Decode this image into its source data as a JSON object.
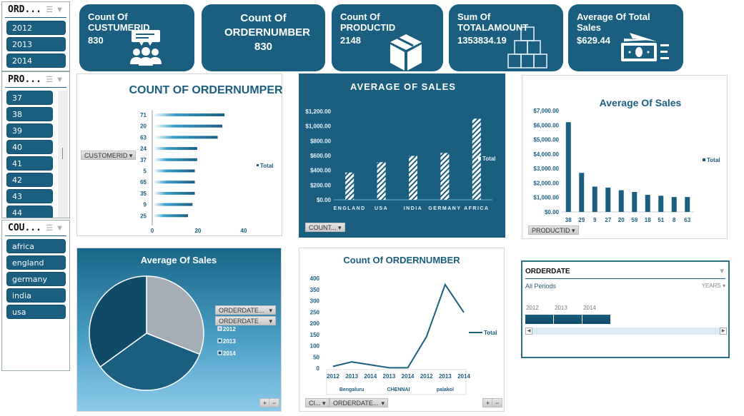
{
  "slicers": {
    "orderdate": {
      "title": "ORD...",
      "items": [
        "2012",
        "2013",
        "2014"
      ]
    },
    "productid": {
      "title": "PRO...",
      "items": [
        "37",
        "38",
        "39",
        "40",
        "41",
        "42",
        "43",
        "44"
      ]
    },
    "country": {
      "title": "COU...",
      "items": [
        "africa",
        "england",
        "germany",
        "india",
        "usa"
      ]
    }
  },
  "cards": [
    {
      "label": "Count Of CUSTUMERID",
      "value": "830",
      "icon": "customers-icon"
    },
    {
      "label": "Count Of ORDERNUMBER",
      "value": "830"
    },
    {
      "label": "Count Of PRODUCTID",
      "value": "2148",
      "icon": "box-icon"
    },
    {
      "label": "Sum Of TOTALAMOUNT",
      "value": "1353834.19",
      "icon": "boxes-stack-icon"
    },
    {
      "label": "Average Of Total Sales",
      "value": "$629.44",
      "icon": "money-icon"
    }
  ],
  "colors": {
    "primary": "#1a5f80",
    "dark": "#0f4a66",
    "gray": "#a5adb6"
  },
  "chart_data": [
    {
      "type": "bar",
      "orientation": "horizontal",
      "title": "COUNT OF ORDERNUMPER",
      "categories": [
        "71",
        "20",
        "63",
        "24",
        "37",
        "5",
        "65",
        "35",
        "9",
        "25"
      ],
      "values": [
        31,
        30,
        28,
        19,
        19,
        18,
        18,
        18,
        17,
        15
      ],
      "xticks": [
        "0",
        "20",
        "40"
      ],
      "xlim": [
        0,
        50
      ],
      "legend": "Total",
      "legend_position": "right",
      "field_button": "CUSTOMERID"
    },
    {
      "type": "bar",
      "title": "AVERAGE OF SALES",
      "categories": [
        "ENGLAND",
        "USA",
        "INDIA",
        "GERMANY",
        "AFRICA"
      ],
      "values": [
        370,
        510,
        595,
        635,
        1100
      ],
      "yticks": [
        "$0.00",
        "$200.00",
        "$400.00",
        "$600.00",
        "$800.00",
        "$1,000.00",
        "$1,200.00"
      ],
      "ylim": [
        0,
        1200
      ],
      "legend": "Total",
      "legend_position": "right",
      "field_button": "COUNT..."
    },
    {
      "type": "bar",
      "title": "Average Of Sales",
      "categories": [
        "38",
        "29",
        "9",
        "27",
        "20",
        "59",
        "18",
        "51",
        "8",
        "63"
      ],
      "values": [
        6200,
        2700,
        1750,
        1680,
        1500,
        1380,
        1180,
        1120,
        1030,
        1030
      ],
      "yticks": [
        "$0.00",
        "$1,000.00",
        "$2,000.00",
        "$3,000.00",
        "$4,000.00",
        "$5,000.00",
        "$6,000.00",
        "$7,000.00"
      ],
      "ylim": [
        0,
        7000
      ],
      "legend": "Total",
      "legend_position": "right",
      "field_button": "PRODUCTID"
    },
    {
      "type": "pie",
      "title": "Average Of Sales",
      "labels": [
        "2012",
        "2013",
        "2014"
      ],
      "values": [
        31,
        34,
        35
      ],
      "colors": [
        "#a5adb6",
        "#1a5f80",
        "#0f4a66"
      ],
      "field_buttons": [
        "ORDERDATE...",
        "ORDERDATE"
      ],
      "legend_position": "right"
    },
    {
      "type": "line",
      "title": "Count Of ORDERNUMBER",
      "x": [
        "2012",
        "2013",
        "2014",
        "2013",
        "2014",
        "2012",
        "2013",
        "2014"
      ],
      "groups": [
        {
          "name": "Bengaluru",
          "count": 3
        },
        {
          "name": "CHENNAI",
          "count": 2
        },
        {
          "name": "palakol",
          "count": 3
        }
      ],
      "values": [
        8,
        28,
        15,
        2,
        2,
        140,
        372,
        248
      ],
      "yticks": [
        "0",
        "50",
        "100",
        "150",
        "200",
        "250",
        "300",
        "350",
        "400"
      ],
      "ylim": [
        0,
        400
      ],
      "legend": "Total",
      "legend_position": "right",
      "field_buttons": [
        "CI...",
        "ORDERDATE..."
      ]
    }
  ],
  "timeline": {
    "title": "ORDERDATE",
    "period": "All Periods",
    "level": "YEARS",
    "years": [
      "2012",
      "2013",
      "2014"
    ]
  },
  "zoom": {
    "plus": "+",
    "minus": "−"
  }
}
